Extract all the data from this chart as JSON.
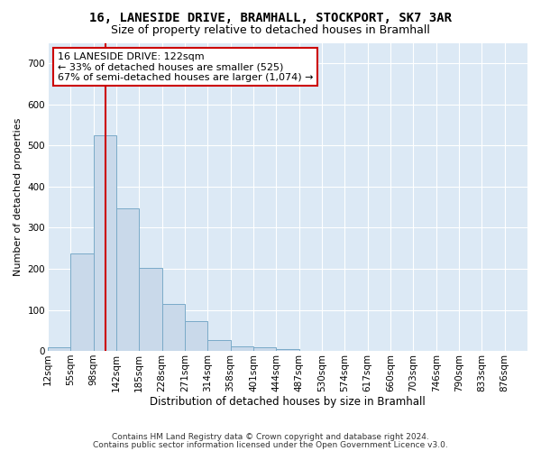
{
  "title1": "16, LANESIDE DRIVE, BRAMHALL, STOCKPORT, SK7 3AR",
  "title2": "Size of property relative to detached houses in Bramhall",
  "xlabel": "Distribution of detached houses by size in Bramhall",
  "ylabel": "Number of detached properties",
  "bar_values": [
    8,
    238,
    525,
    348,
    202,
    115,
    72,
    27,
    12,
    8,
    5,
    0,
    0,
    0,
    0,
    0,
    0,
    0,
    0,
    0,
    0
  ],
  "bar_labels": [
    "12sqm",
    "55sqm",
    "98sqm",
    "142sqm",
    "185sqm",
    "228sqm",
    "271sqm",
    "314sqm",
    "358sqm",
    "401sqm",
    "444sqm",
    "487sqm",
    "530sqm",
    "574sqm",
    "617sqm",
    "660sqm",
    "703sqm",
    "746sqm",
    "790sqm",
    "833sqm",
    "876sqm"
  ],
  "bar_color": "#c9d9ea",
  "bar_edge_color": "#7aaac8",
  "vline_color": "#cc0000",
  "annotation_text": "16 LANESIDE DRIVE: 122sqm\n← 33% of detached houses are smaller (525)\n67% of semi-detached houses are larger (1,074) →",
  "annotation_box_color": "#ffffff",
  "annotation_box_edge": "#cc0000",
  "ylim": [
    0,
    750
  ],
  "yticks": [
    0,
    100,
    200,
    300,
    400,
    500,
    600,
    700
  ],
  "grid_color": "#ffffff",
  "bg_color": "#dce9f5",
  "fig_bg_color": "#ffffff",
  "footer1": "Contains HM Land Registry data © Crown copyright and database right 2024.",
  "footer2": "Contains public sector information licensed under the Open Government Licence v3.0.",
  "title1_fontsize": 10,
  "title2_fontsize": 9,
  "xlabel_fontsize": 8.5,
  "ylabel_fontsize": 8,
  "tick_fontsize": 7.5,
  "annotation_fontsize": 8,
  "footer_fontsize": 6.5
}
